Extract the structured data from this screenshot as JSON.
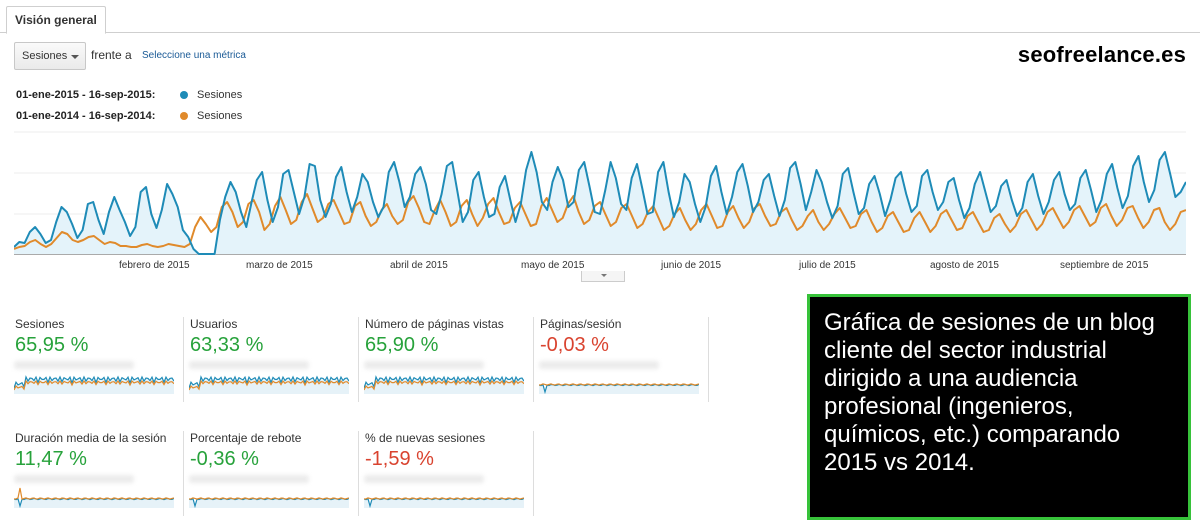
{
  "tab": {
    "label": "Visión general"
  },
  "toolbar": {
    "metric_select": "Sesiones",
    "vs_label": "frente a",
    "select_metric_link": "Seleccione una métrica"
  },
  "brand": "seofreelance.es",
  "legend": [
    {
      "range": "01-ene-2015 - 16-sep-2015:",
      "name": "Sesiones",
      "color": "#1e8bb7"
    },
    {
      "range": "01-ene-2014 - 16-sep-2014:",
      "name": "Sesiones",
      "color": "#e08a2b"
    }
  ],
  "chart_data": {
    "type": "line",
    "x_labels": [
      "febrero de 2015",
      "marzo de 2015",
      "abril de 2015",
      "mayo de 2015",
      "junio de 2015",
      "julio de 2015",
      "agosto de 2015",
      "septiembre de 2015"
    ],
    "series": [
      {
        "name": "01-ene-2015 - 16-sep-2015: Sesiones",
        "color": "#1e8bb7",
        "values": [
          5,
          10,
          9,
          20,
          25,
          18,
          9,
          12,
          30,
          45,
          40,
          28,
          14,
          22,
          48,
          50,
          32,
          18,
          40,
          55,
          42,
          30,
          16,
          25,
          60,
          65,
          38,
          24,
          42,
          68,
          58,
          45,
          22,
          15,
          3,
          -2,
          -2,
          -2,
          -2,
          32,
          55,
          70,
          60,
          40,
          25,
          50,
          72,
          80,
          52,
          30,
          45,
          78,
          82,
          60,
          38,
          55,
          88,
          86,
          52,
          35,
          48,
          75,
          85,
          60,
          40,
          55,
          78,
          70,
          50,
          35,
          45,
          80,
          90,
          70,
          45,
          55,
          78,
          85,
          68,
          42,
          38,
          58,
          86,
          90,
          60,
          30,
          40,
          72,
          80,
          55,
          35,
          38,
          65,
          76,
          52,
          30,
          48,
          82,
          100,
          80,
          50,
          42,
          70,
          85,
          72,
          45,
          50,
          82,
          90,
          66,
          40,
          38,
          62,
          90,
          74,
          48,
          42,
          74,
          88,
          64,
          38,
          40,
          80,
          90,
          60,
          35,
          50,
          78,
          70,
          48,
          30,
          45,
          76,
          86,
          60,
          38,
          55,
          80,
          88,
          66,
          40,
          50,
          72,
          78,
          56,
          36,
          52,
          84,
          90,
          68,
          42,
          60,
          82,
          70,
          50,
          34,
          46,
          78,
          84,
          60,
          38,
          44,
          68,
          76,
          58,
          36,
          52,
          74,
          80,
          58,
          40,
          46,
          76,
          82,
          60,
          42,
          50,
          70,
          74,
          52,
          34,
          44,
          68,
          80,
          60,
          40,
          46,
          66,
          72,
          52,
          36,
          44,
          70,
          78,
          56,
          38,
          50,
          72,
          80,
          58,
          42,
          48,
          74,
          82,
          62,
          40,
          52,
          78,
          88,
          64,
          44,
          56,
          86,
          96,
          70,
          50,
          62,
          92,
          100,
          78,
          55,
          60,
          70
        ]
      },
      {
        "name": "01-ene-2014 - 16-sep-2014: Sesiones",
        "color": "#e08a2b",
        "values": [
          3,
          5,
          6,
          10,
          12,
          8,
          5,
          8,
          14,
          20,
          18,
          12,
          10,
          12,
          15,
          16,
          12,
          8,
          10,
          9,
          6,
          6,
          5,
          5,
          7,
          8,
          6,
          5,
          6,
          8,
          7,
          6,
          5,
          8,
          25,
          35,
          28,
          20,
          25,
          45,
          50,
          40,
          25,
          30,
          48,
          52,
          40,
          22,
          28,
          46,
          55,
          42,
          28,
          32,
          50,
          58,
          44,
          30,
          34,
          48,
          52,
          40,
          28,
          30,
          46,
          50,
          36,
          26,
          30,
          42,
          48,
          36,
          28,
          32,
          50,
          56,
          44,
          30,
          28,
          42,
          52,
          40,
          26,
          30,
          46,
          52,
          38,
          26,
          34,
          48,
          54,
          40,
          28,
          30,
          44,
          50,
          38,
          26,
          28,
          46,
          54,
          42,
          30,
          34,
          48,
          56,
          40,
          28,
          32,
          46,
          50,
          38,
          26,
          30,
          44,
          48,
          36,
          24,
          28,
          40,
          46,
          34,
          22,
          26,
          38,
          44,
          32,
          22,
          28,
          42,
          48,
          36,
          24,
          26,
          40,
          46,
          34,
          24,
          30,
          44,
          48,
          36,
          26,
          28,
          40,
          44,
          32,
          22,
          26,
          36,
          42,
          30,
          22,
          28,
          38,
          44,
          34,
          24,
          26,
          38,
          42,
          30,
          20,
          24,
          36,
          40,
          30,
          20,
          22,
          34,
          40,
          30,
          20,
          26,
          38,
          42,
          32,
          22,
          24,
          36,
          40,
          30,
          20,
          22,
          34,
          38,
          28,
          20,
          26,
          38,
          42,
          32,
          22,
          28,
          40,
          44,
          34,
          24,
          30,
          42,
          46,
          36,
          26,
          30,
          44,
          48,
          36,
          26,
          32,
          44,
          46,
          34,
          24,
          30,
          42,
          44,
          30,
          22,
          28,
          40,
          42
        ]
      }
    ]
  },
  "cards": [
    {
      "label": "Sesiones",
      "value": "65,95 %",
      "trend": "up"
    },
    {
      "label": "Usuarios",
      "value": "63,33 %",
      "trend": "up"
    },
    {
      "label": "Número de páginas vistas",
      "value": "65,90 %",
      "trend": "up"
    },
    {
      "label": "Páginas/sesión",
      "value": "-0,03 %",
      "trend": "down"
    },
    {
      "label": "Duración media de la sesión",
      "value": "11,47 %",
      "trend": "up"
    },
    {
      "label": "Porcentaje de rebote",
      "value": "-0,36 %",
      "trend": "up"
    },
    {
      "label": "% de nuevas sesiones",
      "value": "-1,59 %",
      "trend": "down"
    }
  ],
  "note": "Gráfica de sesiones de un blog cliente del sector industrial dirigido a una audiencia profesional (ingenieros, químicos, etc.) comparando 2015 vs 2014."
}
